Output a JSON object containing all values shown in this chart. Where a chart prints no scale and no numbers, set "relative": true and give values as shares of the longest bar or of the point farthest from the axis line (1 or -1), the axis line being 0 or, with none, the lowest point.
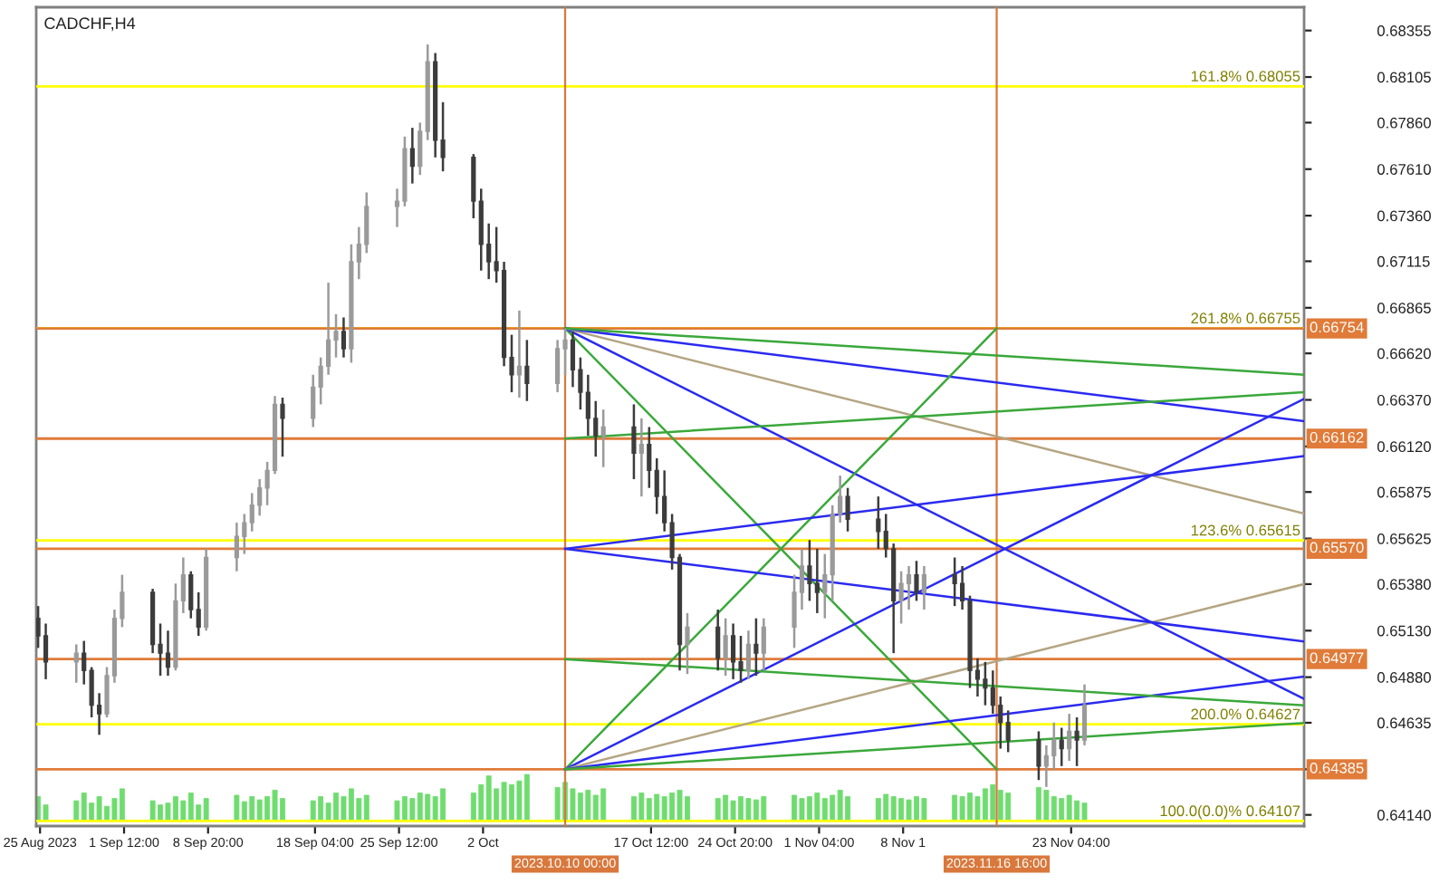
{
  "chart_data": [
    {
      "type": "candlestick",
      "title": "CADCHF,H4",
      "x": [
        "2023-08-25T00:00",
        "2023-08-25T16:00",
        "2023-08-28T08:00",
        "2023-08-29T00:00",
        "2023-08-29T16:00",
        "2023-08-30T08:00",
        "2023-08-31T00:00",
        "2023-08-31T16:00",
        "2023-09-01T08:00",
        "2023-09-04T00:00",
        "2023-09-04T16:00",
        "2023-09-05T08:00",
        "2023-09-06T00:00",
        "2023-09-06T16:00",
        "2023-09-07T08:00",
        "2023-09-08T00:00",
        "2023-09-08T16:00",
        "2023-09-11T08:00",
        "2023-09-12T00:00",
        "2023-09-12T16:00",
        "2023-09-13T08:00",
        "2023-09-14T00:00",
        "2023-09-14T16:00",
        "2023-09-15T08:00",
        "2023-09-18T00:00",
        "2023-09-18T16:00",
        "2023-09-19T08:00",
        "2023-09-20T00:00",
        "2023-09-20T16:00",
        "2023-09-21T08:00",
        "2023-09-22T00:00",
        "2023-09-22T16:00",
        "2023-09-25T08:00",
        "2023-09-26T00:00",
        "2023-09-26T16:00",
        "2023-09-27T08:00",
        "2023-09-28T00:00",
        "2023-09-28T16:00",
        "2023-09-29T08:00",
        "2023-10-02T00:00",
        "2023-10-02T16:00",
        "2023-10-03T08:00",
        "2023-10-04T00:00",
        "2023-10-04T16:00",
        "2023-10-05T08:00",
        "2023-10-06T00:00",
        "2023-10-06T16:00",
        "2023-10-09T08:00",
        "2023-10-10T00:00",
        "2023-10-10T16:00",
        "2023-10-11T08:00",
        "2023-10-12T00:00",
        "2023-10-12T16:00",
        "2023-10-13T08:00",
        "2023-10-16T00:00",
        "2023-10-16T16:00",
        "2023-10-17T08:00",
        "2023-10-18T00:00",
        "2023-10-18T16:00",
        "2023-10-19T08:00",
        "2023-10-20T00:00",
        "2023-10-20T16:00",
        "2023-10-23T08:00",
        "2023-10-24T00:00",
        "2023-10-24T16:00",
        "2023-10-25T08:00",
        "2023-10-26T00:00",
        "2023-10-26T16:00",
        "2023-10-27T08:00",
        "2023-10-30T00:00",
        "2023-10-30T16:00",
        "2023-10-31T08:00",
        "2023-11-01T00:00",
        "2023-11-01T16:00",
        "2023-11-02T08:00",
        "2023-11-03T00:00",
        "2023-11-03T16:00",
        "2023-11-06T08:00",
        "2023-11-07T00:00",
        "2023-11-07T16:00",
        "2023-11-08T08:00",
        "2023-11-09T00:00",
        "2023-11-09T16:00",
        "2023-11-10T08:00",
        "2023-11-13T00:00",
        "2023-11-13T16:00",
        "2023-11-14T08:00",
        "2023-11-15T00:00",
        "2023-11-15T16:00",
        "2023-11-16T08:00",
        "2023-11-17T00:00",
        "2023-11-17T16:00",
        "2023-11-20T08:00",
        "2023-11-21T00:00",
        "2023-11-21T16:00",
        "2023-11-22T08:00",
        "2023-11-23T00:00",
        "2023-11-23T16:00",
        "2023-11-24T08:00"
      ],
      "ohlc": [
        [
          0.65196,
          0.65262,
          0.65037,
          0.65102
        ],
        [
          0.65102,
          0.65168,
          0.64869,
          0.64962
        ],
        [
          0.64962,
          0.65056,
          0.6485,
          0.65009
        ],
        [
          0.65009,
          0.65075,
          0.64841,
          0.64916
        ],
        [
          0.64916,
          0.64934,
          0.64664,
          0.64729
        ],
        [
          0.64729,
          0.64794,
          0.6457,
          0.64683
        ],
        [
          0.64683,
          0.64934,
          0.64664,
          0.64888
        ],
        [
          0.64888,
          0.65243,
          0.6485,
          0.65196
        ],
        [
          0.65196,
          0.6543,
          0.65149,
          0.65336
        ],
        [
          0.65336,
          0.65355,
          0.65009,
          0.65056
        ],
        [
          0.65056,
          0.65168,
          0.64888,
          0.65009
        ],
        [
          0.65009,
          0.6513,
          0.64888,
          0.64934
        ],
        [
          0.64934,
          0.65383,
          0.64916,
          0.6529
        ],
        [
          0.6529,
          0.65523,
          0.65224,
          0.6543
        ],
        [
          0.6543,
          0.65449,
          0.65196,
          0.65243
        ],
        [
          0.65243,
          0.65336,
          0.65102,
          0.65149
        ],
        [
          0.65149,
          0.6557,
          0.6513,
          0.65523
        ],
        [
          0.65523,
          0.6571,
          0.65449,
          0.65636
        ],
        [
          0.65636,
          0.65757,
          0.65542,
          0.6571
        ],
        [
          0.6571,
          0.65869,
          0.65663,
          0.65804
        ],
        [
          0.65804,
          0.65944,
          0.65748,
          0.65897
        ],
        [
          0.65897,
          0.66037,
          0.65804,
          0.65991
        ],
        [
          0.65991,
          0.66391,
          0.65972,
          0.66346
        ],
        [
          0.66346,
          0.66382,
          0.66065,
          0.66271
        ],
        [
          0.66271,
          0.66505,
          0.66224,
          0.66439
        ],
        [
          0.66439,
          0.66598,
          0.66346,
          0.66551
        ],
        [
          0.66551,
          0.67,
          0.66505,
          0.66692
        ],
        [
          0.66692,
          0.66831,
          0.66598,
          0.66738
        ],
        [
          0.66738,
          0.66813,
          0.66598,
          0.66645
        ],
        [
          0.66645,
          0.67206,
          0.6657,
          0.67112
        ],
        [
          0.67112,
          0.67299,
          0.67019,
          0.67206
        ],
        [
          0.67206,
          0.67485,
          0.67159,
          0.6741
        ],
        [
          0.6741,
          0.67505,
          0.67299,
          0.67438
        ],
        [
          0.67438,
          0.67785,
          0.6741,
          0.6772
        ],
        [
          0.6772,
          0.67832,
          0.67533,
          0.67626
        ],
        [
          0.67626,
          0.6786,
          0.67579,
          0.67813
        ],
        [
          0.67813,
          0.6828,
          0.67766,
          0.68187
        ],
        [
          0.68187,
          0.68234,
          0.67673,
          0.67766
        ],
        [
          0.67766,
          0.6797,
          0.67598,
          0.67673
        ],
        [
          0.67673,
          0.67691,
          0.67346,
          0.67438
        ],
        [
          0.67438,
          0.67505,
          0.67065,
          0.67206
        ],
        [
          0.67206,
          0.67318,
          0.67019,
          0.67112
        ],
        [
          0.67112,
          0.67299,
          0.67,
          0.67065
        ],
        [
          0.67065,
          0.67112,
          0.66551,
          0.66598
        ],
        [
          0.66598,
          0.6672,
          0.66411,
          0.66505
        ],
        [
          0.66505,
          0.6685,
          0.66382,
          0.66551
        ],
        [
          0.66551,
          0.66692,
          0.66364,
          0.66458
        ],
        [
          0.66458,
          0.66692,
          0.66411,
          0.66645
        ],
        [
          0.66645,
          0.66754,
          0.66505,
          0.66692
        ],
        [
          0.66692,
          0.66738,
          0.66439,
          0.66532
        ],
        [
          0.66532,
          0.66598,
          0.66318,
          0.66411
        ],
        [
          0.66411,
          0.66505,
          0.66177,
          0.66271
        ],
        [
          0.66271,
          0.66364,
          0.66065,
          0.66177
        ],
        [
          0.66177,
          0.66318,
          0.66009,
          0.66224
        ],
        [
          0.66224,
          0.66346,
          0.65944,
          0.66084
        ],
        [
          0.66084,
          0.66271,
          0.65851,
          0.66131
        ],
        [
          0.66131,
          0.66224,
          0.65897,
          0.65991
        ],
        [
          0.65991,
          0.66056,
          0.65757,
          0.65851
        ],
        [
          0.65851,
          0.65991,
          0.65663,
          0.6571
        ],
        [
          0.6571,
          0.65757,
          0.65458,
          0.65523
        ],
        [
          0.65523,
          0.65542,
          0.64916,
          0.65056
        ],
        [
          0.65056,
          0.65224,
          0.64897,
          0.65149
        ],
        [
          0.65149,
          0.65243,
          0.64916,
          0.64981
        ],
        [
          0.64981,
          0.65196,
          0.64888,
          0.65102
        ],
        [
          0.65102,
          0.65168,
          0.64869,
          0.64962
        ],
        [
          0.64962,
          0.65102,
          0.6485,
          0.64916
        ],
        [
          0.64916,
          0.6513,
          0.64869,
          0.65056
        ],
        [
          0.65056,
          0.65196,
          0.64888,
          0.65009
        ],
        [
          0.65009,
          0.65196,
          0.64916,
          0.65149
        ],
        [
          0.65149,
          0.6543,
          0.65037,
          0.65336
        ],
        [
          0.65336,
          0.6557,
          0.65243,
          0.65477
        ],
        [
          0.65477,
          0.65617,
          0.6529,
          0.65383
        ],
        [
          0.65383,
          0.6557,
          0.65224,
          0.65336
        ],
        [
          0.65336,
          0.65542,
          0.65196,
          0.6543
        ],
        [
          0.6543,
          0.65804,
          0.6529,
          0.65757
        ],
        [
          0.65757,
          0.65963,
          0.6571,
          0.65851
        ],
        [
          0.65851,
          0.65897,
          0.65663,
          0.65729
        ],
        [
          0.65729,
          0.65851,
          0.6557,
          0.65663
        ],
        [
          0.65663,
          0.65757,
          0.65523,
          0.6557
        ],
        [
          0.6557,
          0.65598,
          0.65009,
          0.6529
        ],
        [
          0.6529,
          0.65449,
          0.65168,
          0.65383
        ],
        [
          0.65383,
          0.65477,
          0.65243,
          0.6543
        ],
        [
          0.6543,
          0.65505,
          0.6529,
          0.65336
        ],
        [
          0.65336,
          0.65477,
          0.65243,
          0.6543
        ],
        [
          0.6543,
          0.65523,
          0.65262,
          0.65383
        ],
        [
          0.65383,
          0.65477,
          0.65243,
          0.6529
        ],
        [
          0.6529,
          0.65318,
          0.64822,
          0.64916
        ],
        [
          0.64916,
          0.64981,
          0.64776,
          0.64869
        ],
        [
          0.64869,
          0.64962,
          0.64729,
          0.64822
        ],
        [
          0.64822,
          0.64916,
          0.64683,
          0.64729
        ],
        [
          0.64729,
          0.64776,
          0.64496,
          0.64636
        ],
        [
          0.64636,
          0.64701,
          0.64477,
          0.64542
        ],
        [
          0.64542,
          0.64589,
          0.64327,
          0.64402
        ],
        [
          0.64402,
          0.64514,
          0.6429,
          0.64458
        ],
        [
          0.64458,
          0.64636,
          0.64383,
          0.64542
        ],
        [
          0.64542,
          0.64608,
          0.64402,
          0.64496
        ],
        [
          0.64496,
          0.64683,
          0.6443,
          0.64589
        ],
        [
          0.64589,
          0.64664,
          0.64402,
          0.64542
        ],
        [
          0.64542,
          0.64841,
          0.64514,
          0.64729
        ]
      ],
      "colors": [
        "#3c3c3c",
        "#3c3c3c",
        "#9a9a9a",
        "#3c3c3c",
        "#3c3c3c",
        "#3c3c3c",
        "#9a9a9a",
        "#9a9a9a",
        "#9a9a9a",
        "#3c3c3c",
        "#3c3c3c",
        "#3c3c3c",
        "#9a9a9a",
        "#9a9a9a",
        "#3c3c3c",
        "#3c3c3c",
        "#9a9a9a",
        "#9a9a9a",
        "#9a9a9a",
        "#9a9a9a",
        "#9a9a9a",
        "#9a9a9a",
        "#9a9a9a",
        "#3c3c3c",
        "#9a9a9a",
        "#9a9a9a",
        "#9a9a9a",
        "#9a9a9a",
        "#3c3c3c",
        "#9a9a9a",
        "#9a9a9a",
        "#9a9a9a",
        "#9a9a9a",
        "#9a9a9a",
        "#3c3c3c",
        "#9a9a9a",
        "#9a9a9a",
        "#3c3c3c",
        "#3c3c3c",
        "#3c3c3c",
        "#3c3c3c",
        "#3c3c3c",
        "#3c3c3c",
        "#3c3c3c",
        "#3c3c3c",
        "#9a9a9a",
        "#3c3c3c",
        "#9a9a9a",
        "#9a9a9a",
        "#3c3c3c",
        "#3c3c3c",
        "#3c3c3c",
        "#3c3c3c",
        "#9a9a9a",
        "#3c3c3c",
        "#9a9a9a",
        "#3c3c3c",
        "#3c3c3c",
        "#3c3c3c",
        "#3c3c3c",
        "#3c3c3c",
        "#9a9a9a",
        "#3c3c3c",
        "#9a9a9a",
        "#3c3c3c",
        "#3c3c3c",
        "#9a9a9a",
        "#3c3c3c",
        "#9a9a9a",
        "#9a9a9a",
        "#9a9a9a",
        "#3c3c3c",
        "#3c3c3c",
        "#9a9a9a",
        "#9a9a9a",
        "#9a9a9a",
        "#3c3c3c",
        "#3c3c3c",
        "#3c3c3c",
        "#3c3c3c",
        "#9a9a9a",
        "#9a9a9a",
        "#3c3c3c",
        "#9a9a9a",
        "#3c3c3c",
        "#3c3c3c",
        "#3c3c3c",
        "#3c3c3c",
        "#3c3c3c",
        "#3c3c3c",
        "#3c3c3c",
        "#3c3c3c",
        "#3c3c3c",
        "#9a9a9a",
        "#9a9a9a",
        "#3c3c3c",
        "#9a9a9a",
        "#3c3c3c",
        "#9a9a9a"
      ],
      "series": [
        {
          "type": "line",
          "color": "#3aa83a",
          "x": [
            "2023-10-10T00:00",
            "2023-11-16T16:00"
          ],
          "values": [
            0.66754,
            0.64385
          ]
        },
        {
          "type": "line",
          "color": "#2a2af0",
          "x": [
            "2023-10-10T00:00",
            "2023-12-13T12:00"
          ],
          "values": [
            0.66754,
            0.64763
          ]
        },
        {
          "type": "line",
          "color": "#b4a582",
          "x": [
            "2023-10-10T00:00",
            "2023-12-13T12:00"
          ],
          "values": [
            0.66754,
            0.65759
          ]
        },
        {
          "type": "line",
          "color": "#2a2af0",
          "x": [
            "2023-10-10T00:00",
            "2023-12-13T12:00"
          ],
          "values": [
            0.66754,
            0.66256
          ]
        },
        {
          "type": "line",
          "color": "#3aa83a",
          "x": [
            "2023-10-10T00:00",
            "2023-12-13T12:00"
          ],
          "values": [
            0.66754,
            0.66505
          ]
        },
        {
          "type": "line",
          "color": "#3aa83a",
          "x": [
            "2023-10-10T00:00",
            "2023-11-16T16:00"
          ],
          "values": [
            0.64385,
            0.66754
          ]
        },
        {
          "type": "line",
          "color": "#2a2af0",
          "x": [
            "2023-10-10T00:00",
            "2023-12-13T12:00"
          ],
          "values": [
            0.64385,
            0.66376
          ]
        },
        {
          "type": "line",
          "color": "#b4a582",
          "x": [
            "2023-10-10T00:00",
            "2023-12-13T12:00"
          ],
          "values": [
            0.64385,
            0.6538
          ]
        },
        {
          "type": "line",
          "color": "#2a2af0",
          "x": [
            "2023-10-10T00:00",
            "2023-12-13T12:00"
          ],
          "values": [
            0.64385,
            0.64883
          ]
        },
        {
          "type": "line",
          "color": "#3aa83a",
          "x": [
            "2023-10-10T00:00",
            "2023-12-13T12:00"
          ],
          "values": [
            0.64385,
            0.64634
          ]
        },
        {
          "type": "line",
          "color": "#2a2af0",
          "x": [
            "2023-10-10T00:00",
            "2023-12-13T12:00"
          ],
          "values": [
            0.6557,
            0.66068
          ]
        },
        {
          "type": "line",
          "color": "#2a2af0",
          "x": [
            "2023-10-10T00:00",
            "2023-12-13T12:00"
          ],
          "values": [
            0.6557,
            0.65072
          ]
        },
        {
          "type": "line",
          "color": "#3aa83a",
          "x": [
            "2023-10-10T00:00",
            "2023-12-13T12:00"
          ],
          "values": [
            0.66162,
            0.66411
          ]
        },
        {
          "type": "line",
          "color": "#3aa83a",
          "x": [
            "2023-10-10T00:00",
            "2023-12-13T12:00"
          ],
          "values": [
            0.64977,
            0.64728
          ]
        }
      ],
      "ref_lines": [
        {
          "axis": "y",
          "value": 0.68055,
          "label": "161.8% 0.68055",
          "color": "#ffff00"
        },
        {
          "axis": "y",
          "value": 0.66755,
          "label": "261.8% 0.66755",
          "color": "#ffff00"
        },
        {
          "axis": "y",
          "value": 0.65615,
          "label": "123.6% 0.65615",
          "color": "#ffff00"
        },
        {
          "axis": "y",
          "value": 0.64627,
          "label": "200.0% 0.64627",
          "color": "#ffff00"
        },
        {
          "axis": "y",
          "value": 0.64107,
          "label": "100.0(0.0)% 0.64107",
          "color": "#ffff00"
        },
        {
          "axis": "y",
          "value": 0.66754,
          "label": "0.66754",
          "color": "#e07b39"
        },
        {
          "axis": "y",
          "value": 0.66162,
          "label": "0.66162",
          "color": "#e07b39"
        },
        {
          "axis": "y",
          "value": 0.6557,
          "label": "0.65570",
          "color": "#e07b39"
        },
        {
          "axis": "y",
          "value": 0.64977,
          "label": "0.64977",
          "color": "#e07b39"
        },
        {
          "axis": "y",
          "value": 0.64385,
          "label": "0.64385",
          "color": "#e07b39"
        },
        {
          "axis": "x",
          "value": "2023-10-10T00:00",
          "label": "2023.10.10 00:00",
          "color": "#d9783c"
        },
        {
          "axis": "x",
          "value": "2023-11-16T16:00",
          "label": "2023.11.16 16:00",
          "color": "#d9783c"
        }
      ],
      "xlim": [
        "2023-08-24T20:00",
        "2023-12-13T12:00"
      ],
      "xticks": [
        {
          "value": "2023-08-25T04:00",
          "label": "25 Aug 2023"
        },
        {
          "value": "2023-09-01T12:00",
          "label": "1 Sep 12:00"
        },
        {
          "value": "2023-09-08T20:00",
          "label": "8 Sep 20:00"
        },
        {
          "value": "2023-09-18T04:00",
          "label": "18 Sep 04:00"
        },
        {
          "value": "2023-09-25T12:00",
          "label": "25 Sep 12:00"
        },
        {
          "value": "2023-10-02T20:00",
          "label": "2 Oct"
        },
        {
          "value": "2023-10-17T12:00",
          "label": "17 Oct 12:00"
        },
        {
          "value": "2023-10-24T20:00",
          "label": "24 Oct 20:00"
        },
        {
          "value": "2023-11-01T04:00",
          "label": "1 Nov 04:00"
        },
        {
          "value": "2023-11-08T12:00",
          "label": "8 Nov 1"
        },
        {
          "value": "2023-11-23T04:00",
          "label": "23 Nov 04:00"
        }
      ],
      "ylim": [
        0.6408,
        0.6848
      ],
      "yticks": [
        {
          "value": 0.68355,
          "label": "0.68355"
        },
        {
          "value": 0.68105,
          "label": "0.68105"
        },
        {
          "value": 0.6786,
          "label": "0.67860"
        },
        {
          "value": 0.6761,
          "label": "0.67610"
        },
        {
          "value": 0.6736,
          "label": "0.67360"
        },
        {
          "value": 0.67115,
          "label": "0.67115"
        },
        {
          "value": 0.66865,
          "label": "0.66865"
        },
        {
          "value": 0.6662,
          "label": "0.66620"
        },
        {
          "value": 0.6637,
          "label": "0.66370"
        },
        {
          "value": 0.6612,
          "label": "0.66120"
        },
        {
          "value": 0.65875,
          "label": "0.65875"
        },
        {
          "value": 0.65625,
          "label": "0.65625"
        },
        {
          "value": 0.6538,
          "label": "0.65380"
        },
        {
          "value": 0.6513,
          "label": "0.65130"
        },
        {
          "value": 0.6488,
          "label": "0.64880"
        },
        {
          "value": 0.64635,
          "label": "0.64635"
        },
        {
          "value": 0.64385,
          "label": null
        },
        {
          "value": 0.6414,
          "label": "0.64140"
        }
      ]
    },
    {
      "type": "bar",
      "relative": true,
      "color": "#6fdc6f",
      "tick_labels": false,
      "xlim": [
        "2023-08-24T20:00",
        "2023-12-13T12:00"
      ],
      "x": [
        "2023-08-25T00:00",
        "2023-08-25T16:00",
        "2023-08-28T08:00",
        "2023-08-29T00:00",
        "2023-08-29T16:00",
        "2023-08-30T08:00",
        "2023-08-31T00:00",
        "2023-08-31T16:00",
        "2023-09-01T08:00",
        "2023-09-04T00:00",
        "2023-09-04T16:00",
        "2023-09-05T08:00",
        "2023-09-06T00:00",
        "2023-09-06T16:00",
        "2023-09-07T08:00",
        "2023-09-08T00:00",
        "2023-09-08T16:00",
        "2023-09-11T08:00",
        "2023-09-12T00:00",
        "2023-09-12T16:00",
        "2023-09-13T08:00",
        "2023-09-14T00:00",
        "2023-09-14T16:00",
        "2023-09-15T08:00",
        "2023-09-18T00:00",
        "2023-09-18T16:00",
        "2023-09-19T08:00",
        "2023-09-20T00:00",
        "2023-09-20T16:00",
        "2023-09-21T08:00",
        "2023-09-22T00:00",
        "2023-09-22T16:00",
        "2023-09-25T08:00",
        "2023-09-26T00:00",
        "2023-09-26T16:00",
        "2023-09-27T08:00",
        "2023-09-28T00:00",
        "2023-09-28T16:00",
        "2023-09-29T08:00",
        "2023-10-02T00:00",
        "2023-10-02T16:00",
        "2023-10-03T08:00",
        "2023-10-04T00:00",
        "2023-10-04T16:00",
        "2023-10-05T08:00",
        "2023-10-06T00:00",
        "2023-10-06T16:00",
        "2023-10-09T08:00",
        "2023-10-10T00:00",
        "2023-10-10T16:00",
        "2023-10-11T08:00",
        "2023-10-12T00:00",
        "2023-10-12T16:00",
        "2023-10-13T08:00",
        "2023-10-16T00:00",
        "2023-10-16T16:00",
        "2023-10-17T08:00",
        "2023-10-18T00:00",
        "2023-10-18T16:00",
        "2023-10-19T08:00",
        "2023-10-20T00:00",
        "2023-10-20T16:00",
        "2023-10-23T08:00",
        "2023-10-24T00:00",
        "2023-10-24T16:00",
        "2023-10-25T08:00",
        "2023-10-26T00:00",
        "2023-10-26T16:00",
        "2023-10-27T08:00",
        "2023-10-30T00:00",
        "2023-10-30T16:00",
        "2023-10-31T08:00",
        "2023-11-01T00:00",
        "2023-11-01T16:00",
        "2023-11-02T08:00",
        "2023-11-03T00:00",
        "2023-11-03T16:00",
        "2023-11-06T08:00",
        "2023-11-07T00:00",
        "2023-11-07T16:00",
        "2023-11-08T08:00",
        "2023-11-09T00:00",
        "2023-11-09T16:00",
        "2023-11-10T08:00",
        "2023-11-13T00:00",
        "2023-11-13T16:00",
        "2023-11-14T08:00",
        "2023-11-15T00:00",
        "2023-11-15T16:00",
        "2023-11-16T08:00",
        "2023-11-17T00:00",
        "2023-11-17T16:00",
        "2023-11-20T08:00",
        "2023-11-21T00:00",
        "2023-11-21T16:00",
        "2023-11-22T08:00",
        "2023-11-23T00:00",
        "2023-11-23T16:00",
        "2023-11-24T08:00"
      ],
      "values": [
        0.52,
        0.34,
        0.43,
        0.6,
        0.38,
        0.52,
        0.31,
        0.48,
        0.69,
        0.43,
        0.34,
        0.38,
        0.52,
        0.43,
        0.6,
        0.34,
        0.48,
        0.55,
        0.41,
        0.52,
        0.45,
        0.52,
        0.66,
        0.48,
        0.43,
        0.52,
        0.38,
        0.6,
        0.52,
        0.69,
        0.48,
        0.55,
        0.43,
        0.52,
        0.48,
        0.6,
        0.57,
        0.52,
        0.69,
        0.6,
        0.78,
        0.97,
        0.69,
        0.83,
        0.78,
        0.86,
        1,
        0.72,
        0.83,
        0.69,
        0.6,
        0.66,
        0.55,
        0.69,
        0.52,
        0.6,
        0.48,
        0.57,
        0.52,
        0.6,
        0.66,
        0.52,
        0.48,
        0.55,
        0.43,
        0.52,
        0.48,
        0.45,
        0.52,
        0.55,
        0.48,
        0.52,
        0.6,
        0.48,
        0.55,
        0.66,
        0.52,
        0.48,
        0.57,
        0.52,
        0.48,
        0.45,
        0.52,
        0.48,
        0.55,
        0.52,
        0.6,
        0.52,
        0.69,
        0.78,
        0.66,
        0.6,
        0.72,
        0.66,
        0.52,
        0.48,
        0.55,
        0.43,
        0.38
      ]
    }
  ]
}
